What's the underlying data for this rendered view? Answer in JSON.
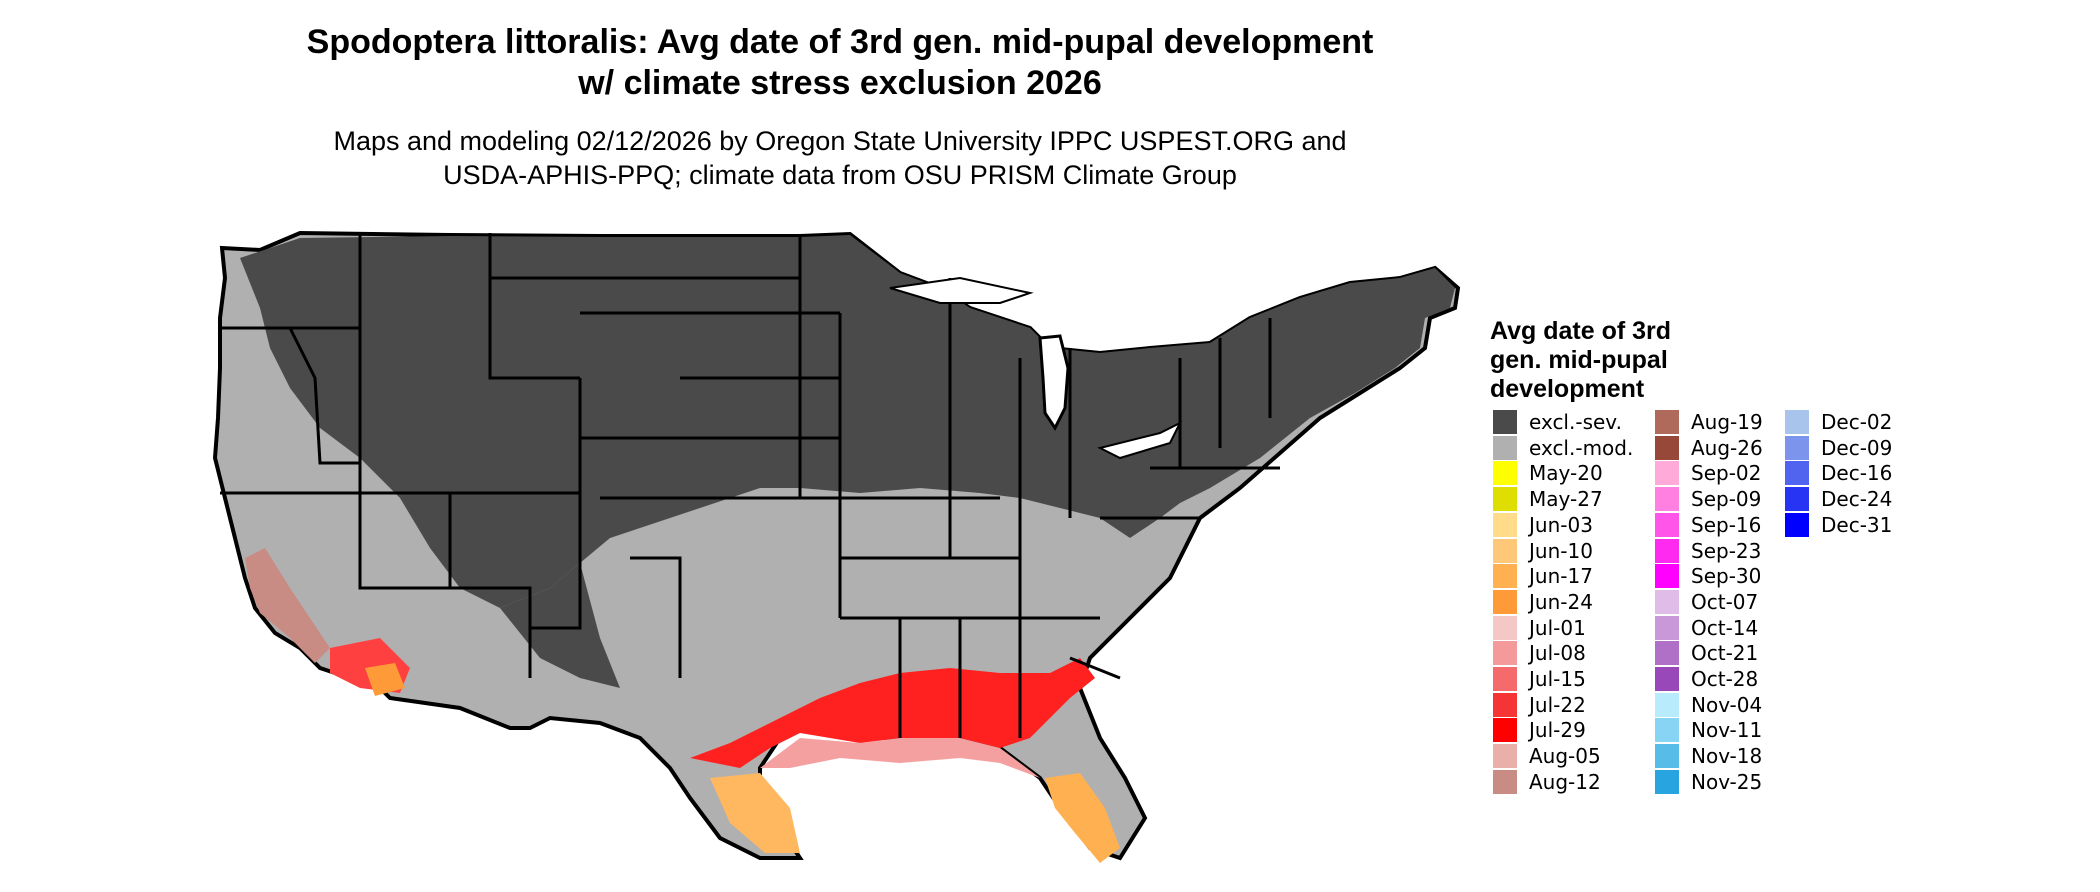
{
  "title": {
    "line1": "Spodoptera littoralis: Avg date of 3rd gen. mid-pupal development",
    "line2": "w/ climate stress exclusion 2026"
  },
  "subtitle": {
    "line1": "Maps and modeling 02/12/2026 by Oregon State University IPPC USPEST.ORG and",
    "line2": "USDA-APHIS-PPQ; climate data from OSU PRISM Climate Group"
  },
  "legend": {
    "title_lines": [
      "Avg date of 3rd",
      "gen. mid-pupal",
      "development"
    ],
    "columns": [
      [
        {
          "label": "excl.-sev.",
          "color": "#4a4a4a"
        },
        {
          "label": "excl.-mod.",
          "color": "#b0b0b0"
        },
        {
          "label": "May-20",
          "color": "#ffff00"
        },
        {
          "label": "May-27",
          "color": "#dede00"
        },
        {
          "label": "Jun-03",
          "color": "#ffdb8a"
        },
        {
          "label": "Jun-10",
          "color": "#ffc878"
        },
        {
          "label": "Jun-17",
          "color": "#ffb050"
        },
        {
          "label": "Jun-24",
          "color": "#ff9a38"
        },
        {
          "label": "Jul-01",
          "color": "#f5c8c8"
        },
        {
          "label": "Jul-08",
          "color": "#f59a9a"
        },
        {
          "label": "Jul-15",
          "color": "#f56a6a"
        },
        {
          "label": "Jul-22",
          "color": "#f53535"
        },
        {
          "label": "Jul-29",
          "color": "#ff0000"
        },
        {
          "label": "Aug-05",
          "color": "#e8b0a8"
        },
        {
          "label": "Aug-12",
          "color": "#c88c84"
        }
      ],
      [
        {
          "label": "Aug-19",
          "color": "#b06a5c"
        },
        {
          "label": "Aug-26",
          "color": "#984838"
        },
        {
          "label": "Sep-02",
          "color": "#ffaad8"
        },
        {
          "label": "Sep-09",
          "color": "#ff80e0"
        },
        {
          "label": "Sep-16",
          "color": "#ff55e8"
        },
        {
          "label": "Sep-23",
          "color": "#ff2af0"
        },
        {
          "label": "Sep-30",
          "color": "#ff00ff"
        },
        {
          "label": "Oct-07",
          "color": "#e0bce8"
        },
        {
          "label": "Oct-14",
          "color": "#c898d8"
        },
        {
          "label": "Oct-21",
          "color": "#b070c8"
        },
        {
          "label": "Oct-28",
          "color": "#9848b8"
        },
        {
          "label": "Nov-04",
          "color": "#b8ecfc"
        },
        {
          "label": "Nov-11",
          "color": "#88d4f4"
        },
        {
          "label": "Nov-18",
          "color": "#58bce8"
        },
        {
          "label": "Nov-25",
          "color": "#28a4e0"
        }
      ],
      [
        {
          "label": "Dec-02",
          "color": "#a8c4ec"
        },
        {
          "label": "Dec-09",
          "color": "#7c94ec"
        },
        {
          "label": "Dec-16",
          "color": "#5064f0"
        },
        {
          "label": "Dec-24",
          "color": "#2834f4"
        },
        {
          "label": "Dec-31",
          "color": "#0000ff"
        }
      ]
    ]
  }
}
